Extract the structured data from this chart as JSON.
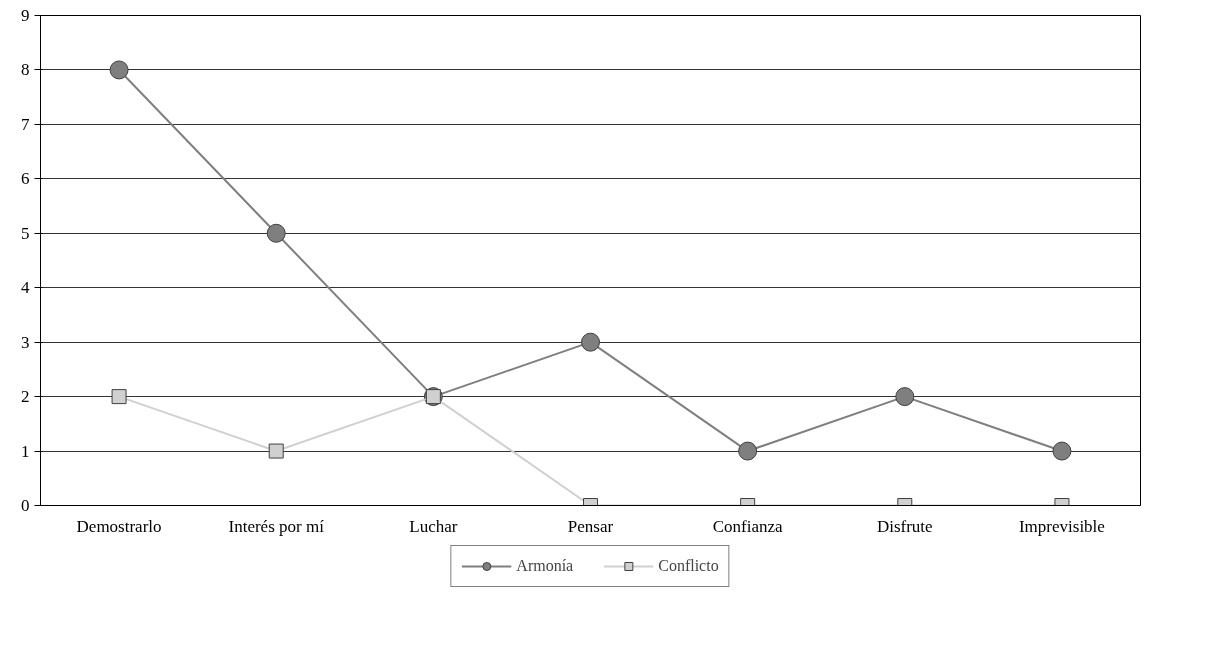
{
  "chart_data": {
    "type": "line",
    "categories": [
      "Demostrarlo",
      "Interés por mí",
      "Luchar",
      "Pensar",
      "Confianza",
      "Disfrute",
      "Imprevisible"
    ],
    "series": [
      {
        "name": "Armonía",
        "color": "#7f7f7f",
        "marker": "circle",
        "values": [
          8,
          5,
          2,
          3,
          1,
          2,
          1
        ]
      },
      {
        "name": "Conflicto",
        "color": "#d0d0d0",
        "marker": "square",
        "values": [
          2,
          1,
          2,
          0,
          0,
          0,
          0
        ]
      }
    ],
    "ylim": [
      0,
      9
    ],
    "yticks": [
      0,
      1,
      2,
      3,
      4,
      5,
      6,
      7,
      8,
      9
    ],
    "grid": "y",
    "legend": "bottom",
    "line_style": "solid"
  }
}
